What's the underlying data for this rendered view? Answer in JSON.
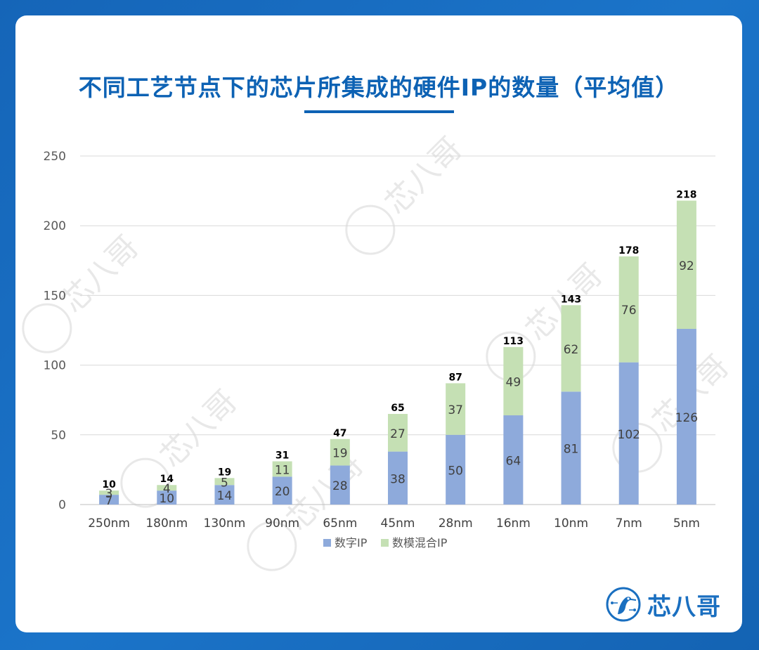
{
  "page": {
    "title": "不同工艺节点下的芯片所集成的硬件IP的数量（平均值）",
    "brand_name": "芯八哥",
    "watermark_text": "芯八哥"
  },
  "chart_data": {
    "type": "bar",
    "stacked": true,
    "title": "不同工艺节点下的芯片所集成的硬件IP的数量（平均值）",
    "categories": [
      "250nm",
      "180nm",
      "130nm",
      "90nm",
      "65nm",
      "45nm",
      "28nm",
      "16nm",
      "10nm",
      "7nm",
      "5nm"
    ],
    "series": [
      {
        "name": "数字IP",
        "values": [
          7,
          10,
          14,
          20,
          28,
          38,
          50,
          64,
          81,
          102,
          126
        ],
        "color": "#8eaadb"
      },
      {
        "name": "数模混合IP",
        "values": [
          3,
          4,
          5,
          11,
          19,
          27,
          37,
          49,
          62,
          76,
          92
        ],
        "color": "#c5e0b4"
      }
    ],
    "totals": [
      10,
      14,
      19,
      31,
      47,
      65,
      87,
      113,
      143,
      178,
      218
    ],
    "ylim": [
      0,
      250
    ],
    "yticks": [
      0,
      50,
      100,
      150,
      200,
      250
    ],
    "grid": true,
    "legend": "bottom"
  }
}
